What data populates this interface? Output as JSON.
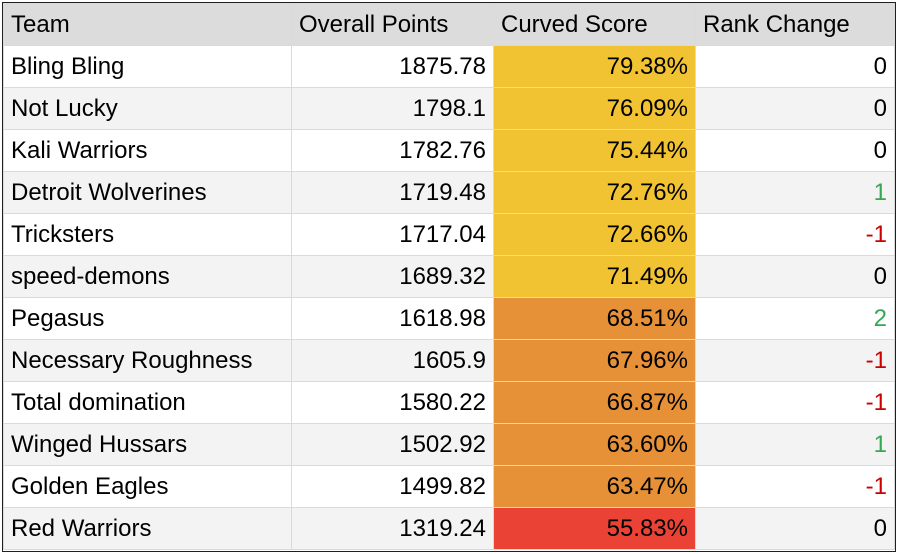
{
  "headers": {
    "team": "Team",
    "overall_points": "Overall Points",
    "curved_score": "Curved Score",
    "rank_change": "Rank Change"
  },
  "colors": {
    "high": "#f1c232",
    "mid": "#e69138",
    "low": "#ea4335",
    "positive": "#34a853",
    "negative": "#cc0000",
    "neutral": "#000000"
  },
  "rows": [
    {
      "team": "Bling Bling",
      "points": "1875.78",
      "curved": "79.38%",
      "rank": "0",
      "tier": "high",
      "trend": "neutral"
    },
    {
      "team": "Not Lucky",
      "points": "1798.1",
      "curved": "76.09%",
      "rank": "0",
      "tier": "high",
      "trend": "neutral"
    },
    {
      "team": "Kali Warriors",
      "points": "1782.76",
      "curved": "75.44%",
      "rank": "0",
      "tier": "high",
      "trend": "neutral"
    },
    {
      "team": "Detroit Wolverines",
      "points": "1719.48",
      "curved": "72.76%",
      "rank": "1",
      "tier": "high",
      "trend": "positive"
    },
    {
      "team": "Tricksters",
      "points": "1717.04",
      "curved": "72.66%",
      "rank": "-1",
      "tier": "high",
      "trend": "negative"
    },
    {
      "team": "speed-demons",
      "points": "1689.32",
      "curved": "71.49%",
      "rank": "0",
      "tier": "high",
      "trend": "neutral"
    },
    {
      "team": "Pegasus",
      "points": "1618.98",
      "curved": "68.51%",
      "rank": "2",
      "tier": "mid",
      "trend": "positive"
    },
    {
      "team": "Necessary Roughness",
      "points": "1605.9",
      "curved": "67.96%",
      "rank": "-1",
      "tier": "mid",
      "trend": "negative"
    },
    {
      "team": "Total domination",
      "points": "1580.22",
      "curved": "66.87%",
      "rank": "-1",
      "tier": "mid",
      "trend": "negative"
    },
    {
      "team": "Winged Hussars",
      "points": "1502.92",
      "curved": "63.60%",
      "rank": "1",
      "tier": "mid",
      "trend": "positive"
    },
    {
      "team": "Golden Eagles",
      "points": "1499.82",
      "curved": "63.47%",
      "rank": "-1",
      "tier": "mid",
      "trend": "negative"
    },
    {
      "team": "Red Warriors",
      "points": "1319.24",
      "curved": "55.83%",
      "rank": "0",
      "tier": "low",
      "trend": "neutral"
    }
  ]
}
